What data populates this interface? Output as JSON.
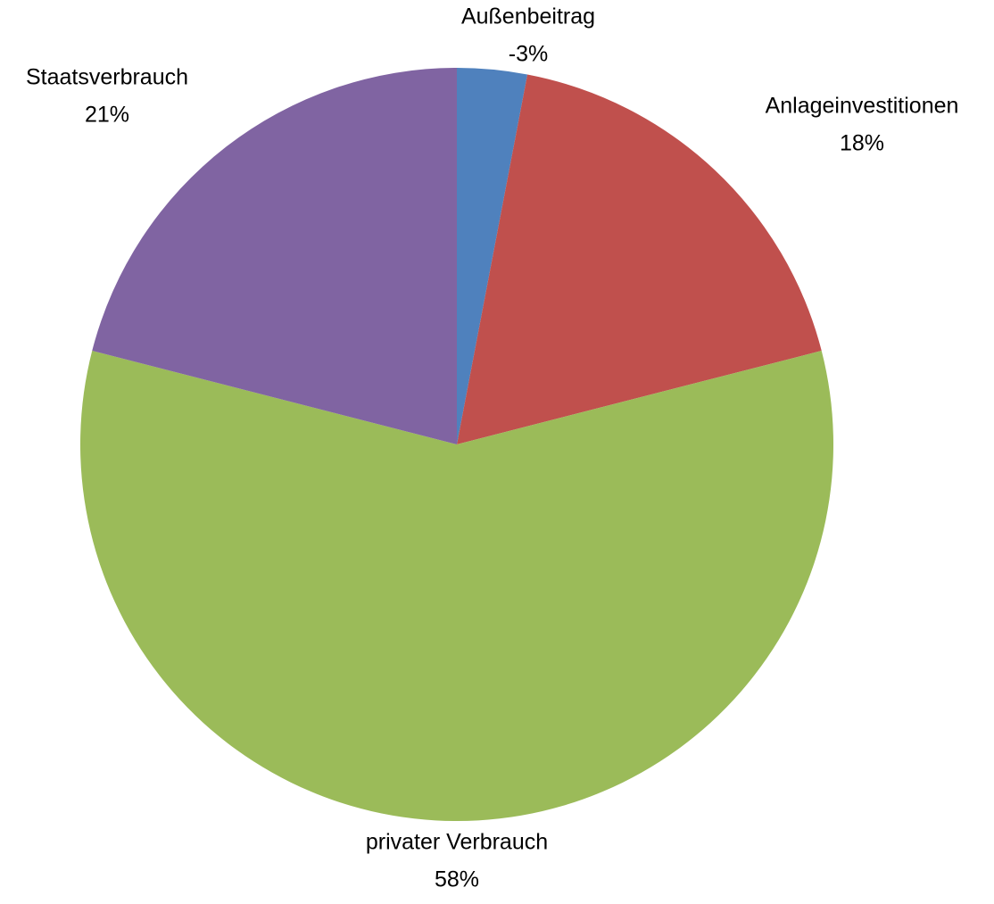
{
  "chart_data": {
    "type": "pie",
    "categories": [
      "Außenbeitrag",
      "Anlageinvestitionen",
      "privater Verbrauch",
      "Staatsverbrauch"
    ],
    "values": [
      -3,
      18,
      58,
      21
    ],
    "value_labels": [
      "-3%",
      "18%",
      "58%",
      "21%"
    ],
    "colors": [
      "#4f81bd",
      "#c0504d",
      "#9bbb59",
      "#8064a2"
    ]
  }
}
